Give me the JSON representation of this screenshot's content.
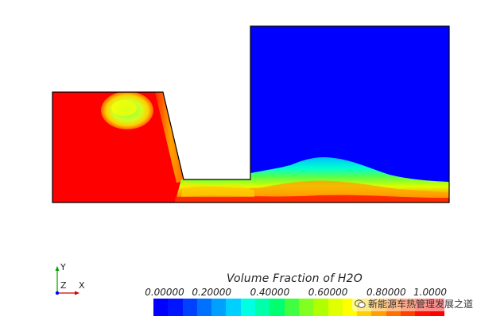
{
  "legend": {
    "title": "Volume Fraction of H2O",
    "ticks": [
      "0.00000",
      "0.20000",
      "0.40000",
      "0.60000",
      "0.80000",
      "1.0000"
    ],
    "colormap": [
      "#0000ff",
      "#0014ff",
      "#0040ff",
      "#0070ff",
      "#00a0ff",
      "#00d0ff",
      "#00ffe0",
      "#00ffaa",
      "#00ff70",
      "#40ff40",
      "#80ff20",
      "#b0ff00",
      "#e0ff00",
      "#ffff00",
      "#ffd000",
      "#ffa000",
      "#ff7000",
      "#ff4000",
      "#ff1000",
      "#ff0000"
    ]
  },
  "axes": {
    "y": "Y",
    "z": "Z",
    "x": "X"
  },
  "watermark": {
    "text": "新能源车热管理发展之道"
  },
  "colors": {
    "water": "#ff0000",
    "air": "#0000ff",
    "outline": "#000000"
  }
}
